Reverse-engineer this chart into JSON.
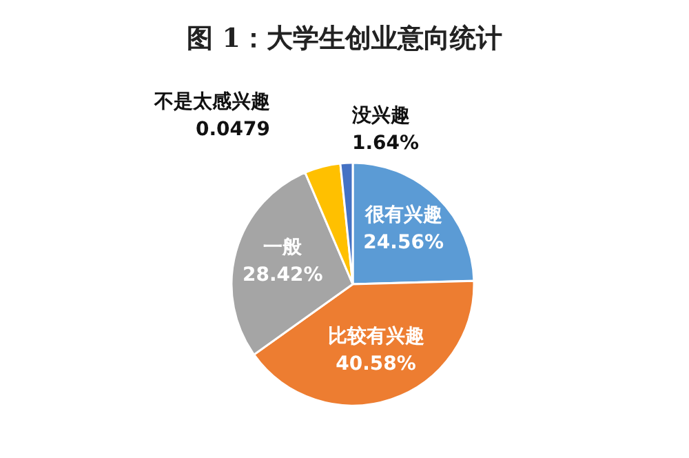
{
  "chart_data": {
    "type": "pie",
    "title": "图 1：大学生创业意向统计",
    "categories": [
      "很有兴趣",
      "比较有兴趣",
      "一般",
      "不是太感兴趣",
      "没兴趣"
    ],
    "values": [
      0.2456,
      0.4058,
      0.2842,
      0.0479,
      0.0164
    ],
    "value_labels": [
      "24.56%",
      "40.58%",
      "28.42%",
      "0.0479",
      "1.64%"
    ],
    "colors": [
      "#5b9bd5",
      "#ed7d31",
      "#a5a5a5",
      "#ffc000",
      "#4472c4"
    ],
    "legend": false
  }
}
